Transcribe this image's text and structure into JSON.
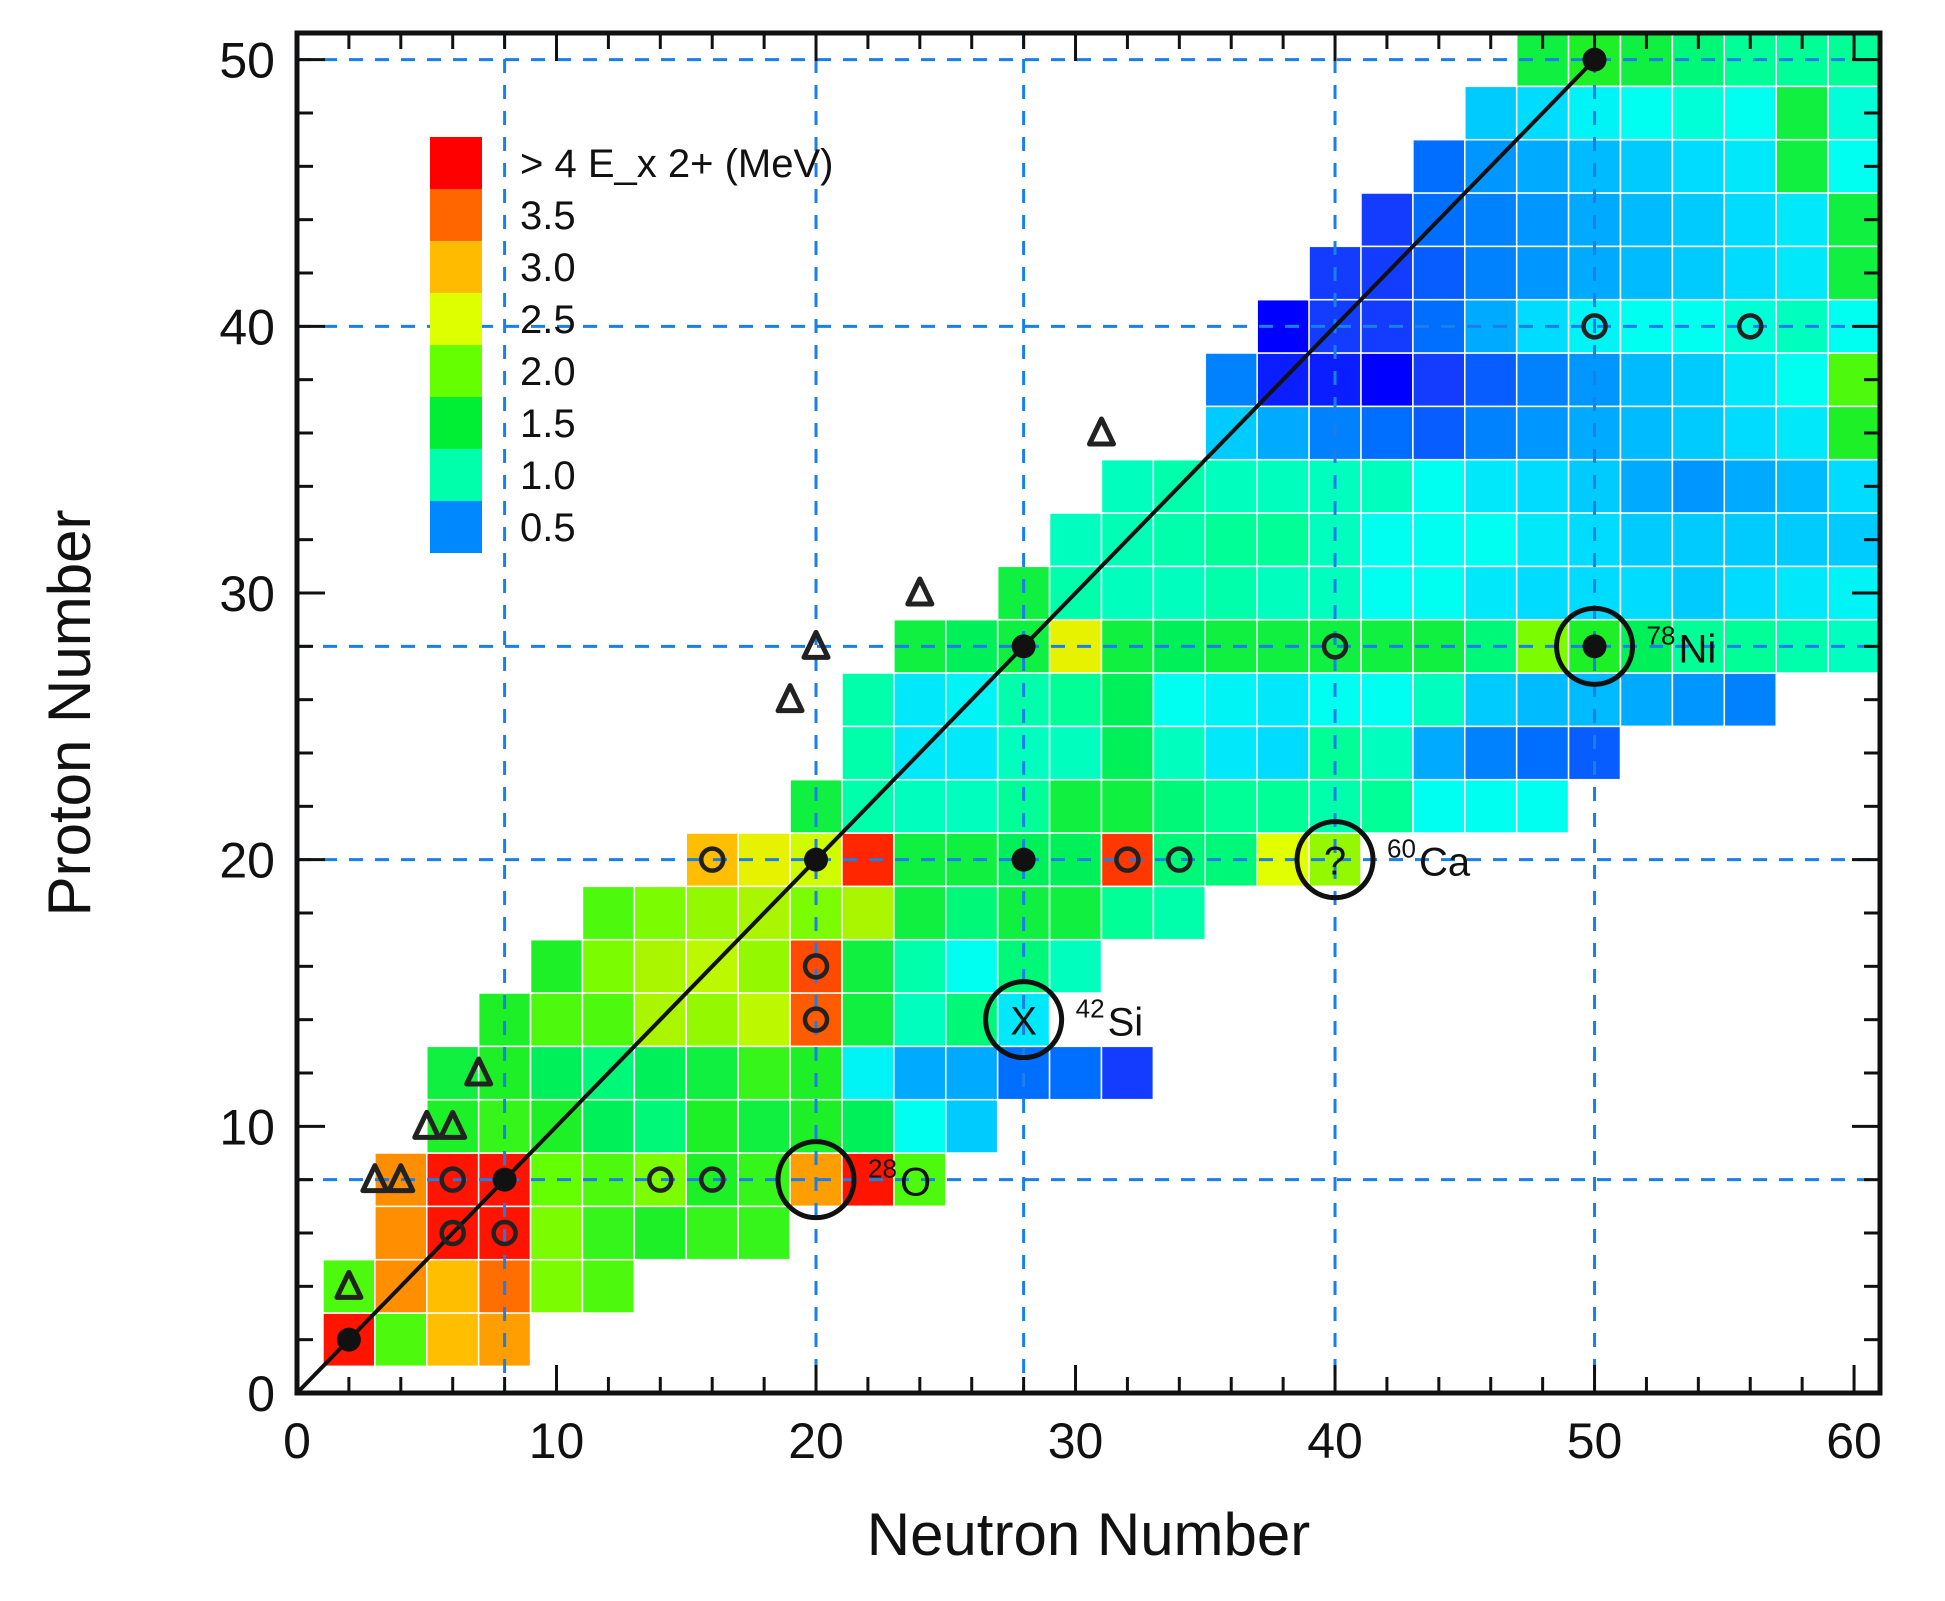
{
  "chart_data": {
    "type": "heatmap",
    "title": "",
    "xlabel": "Neutron Number",
    "ylabel": "Proton Number",
    "xlim": [
      0,
      61
    ],
    "ylim": [
      0,
      51
    ],
    "x_ticks": [
      0,
      10,
      20,
      30,
      40,
      50,
      60
    ],
    "y_ticks": [
      0,
      10,
      20,
      30,
      40,
      50
    ],
    "magic_numbers": {
      "neutron": [
        8,
        20,
        28,
        40,
        50
      ],
      "proton": [
        8,
        20,
        28,
        40,
        50
      ]
    },
    "colorbar": {
      "title": "> 4  E_x 2+ (MeV)",
      "entries": [
        {
          "label": ">4",
          "color": "#ff0000"
        },
        {
          "label": "3.5",
          "color": "#ff6600"
        },
        {
          "label": "3.0",
          "color": "#ffbb00"
        },
        {
          "label": "2.5",
          "color": "#ddff00"
        },
        {
          "label": "2.0",
          "color": "#66ff00"
        },
        {
          "label": "1.5",
          "color": "#00ee33"
        },
        {
          "label": "1.0",
          "color": "#00ffaa"
        },
        {
          "label": "0.5",
          "color": "#0088ff"
        }
      ]
    },
    "cells_note": "Each row: Z, N_start, sequence of E(2+) energy classes (MeV) for consecutive even N",
    "rows": [
      {
        "Z": 2,
        "N0": 2,
        "e": [
          5,
          1.8,
          3.0,
          3.2
        ]
      },
      {
        "Z": 4,
        "N0": 2,
        "e": [
          1.8,
          3.3,
          3.0,
          3.5,
          2.0,
          1.8
        ]
      },
      {
        "Z": 6,
        "N0": 4,
        "e": [
          3.3,
          4.5,
          4.5,
          2.0,
          1.7,
          1.6,
          1.7,
          1.7
        ]
      },
      {
        "Z": 8,
        "N0": 4,
        "e": [
          3.3,
          4.5,
          5,
          1.9,
          1.8,
          2.0,
          1.6,
          1.7,
          3.2,
          4.2,
          1.8
        ]
      },
      {
        "Z": 10,
        "N0": 6,
        "e": [
          1.6,
          1.7,
          1.6,
          1.4,
          1.3,
          1.6,
          1.5,
          1.6,
          1.4,
          0.9,
          0.7
        ]
      },
      {
        "Z": 12,
        "N0": 6,
        "e": [
          1.5,
          1.6,
          1.4,
          1.3,
          1.4,
          1.5,
          1.7,
          1.6,
          0.85,
          0.6,
          0.6,
          0.45,
          0.45,
          0.3
        ]
      },
      {
        "Z": 14,
        "N0": 8,
        "e": [
          1.6,
          1.8,
          1.8,
          2.2,
          2.1,
          2.3,
          3.6,
          1.5,
          1.0,
          1.3,
          0.8
        ]
      },
      {
        "Z": 16,
        "N0": 10,
        "e": [
          1.6,
          2.0,
          2.2,
          2.3,
          2.1,
          3.7,
          1.5,
          1.1,
          0.9,
          1.3,
          1.0
        ]
      },
      {
        "Z": 18,
        "N0": 12,
        "e": [
          1.8,
          2.0,
          2.1,
          2.2,
          2.0,
          2.2,
          1.5,
          1.3,
          1.5,
          1.5,
          1.2,
          1.1
        ]
      },
      {
        "Z": 20,
        "N0": 16,
        "e": [
          3.0,
          2.6,
          2.4,
          3.9,
          1.5,
          1.5,
          1.4,
          1.4,
          3.8,
          1.3,
          1.3,
          2.5,
          2.1
        ]
      },
      {
        "Z": 22,
        "N0": 20,
        "e": [
          1.5,
          1.1,
          1.0,
          1.0,
          1.2,
          1.5,
          1.5,
          1.3,
          1.2,
          1.2,
          1.1,
          1.2,
          0.9,
          0.9,
          0.9
        ]
      },
      {
        "Z": 24,
        "N0": 22,
        "e": [
          1.1,
          0.8,
          0.8,
          1.0,
          1.0,
          1.4,
          1.0,
          0.8,
          0.75,
          1.2,
          1.0,
          0.6,
          0.5,
          0.45,
          0.4
        ]
      },
      {
        "Z": 26,
        "N0": 22,
        "e": [
          1.1,
          0.8,
          0.85,
          1.1,
          1.2,
          1.4,
          0.9,
          0.85,
          0.8,
          0.9,
          0.9,
          1.0,
          0.7,
          0.65,
          0.65,
          0.6,
          0.55,
          0.5
        ]
      },
      {
        "Z": 28,
        "N0": 24,
        "e": [
          1.5,
          1.4,
          1.5,
          2.6,
          1.5,
          1.4,
          1.5,
          1.5,
          1.5,
          1.5,
          1.5,
          1.3,
          2.0,
          1.6,
          1.4,
          1.2,
          1.2,
          1.1,
          1.0,
          1.0,
          1.0,
          1.0,
          1.0,
          1.0,
          1.0,
          1.0,
          2.6
        ]
      },
      {
        "Z": 30,
        "N0": 28,
        "e": [
          1.5,
          1.1,
          1.0,
          1.0,
          1.1,
          1.0,
          1.0,
          0.9,
          0.9,
          0.8,
          0.75,
          0.75,
          0.75,
          0.7,
          0.75,
          0.8,
          0.85,
          0.9,
          0.9,
          0.9,
          0.9,
          1.5
        ]
      },
      {
        "Z": 32,
        "N0": 30,
        "e": [
          1.0,
          1.05,
          1.1,
          1.2,
          1.2,
          1.0,
          0.9,
          0.9,
          0.9,
          0.8,
          0.75,
          0.7,
          0.7,
          0.7,
          0.7,
          0.7,
          0.7,
          0.7,
          0.7,
          1.5,
          0.8,
          0.7,
          0.6
        ]
      },
      {
        "Z": 34,
        "N0": 32,
        "e": [
          1.0,
          1.1,
          1.0,
          1.0,
          1.0,
          1.0,
          0.9,
          0.8,
          0.75,
          0.7,
          0.6,
          0.55,
          0.6,
          0.65,
          0.75,
          0.7,
          0.7,
          0.7,
          1.4,
          0.8,
          0.65
        ]
      },
      {
        "Z": 36,
        "N0": 36,
        "e": [
          0.7,
          0.6,
          0.5,
          0.45,
          0.4,
          0.5,
          0.55,
          0.6,
          0.65,
          0.7,
          0.75,
          0.8,
          1.6,
          0.85,
          0.7,
          0.65,
          0.55,
          0.55,
          0.5,
          0.6,
          0.5,
          0.55,
          0.45,
          0.5,
          0.55,
          0.6,
          0.5
        ]
      },
      {
        "Z": 38,
        "N0": 36,
        "e": [
          0.5,
          0.25,
          0.25,
          0.2,
          0.3,
          0.4,
          0.5,
          0.55,
          0.65,
          0.7,
          0.8,
          0.9,
          1.8,
          1.0,
          0.95,
          0.9,
          0.9,
          0.85,
          0.8,
          0.85,
          0.75,
          0.9,
          0.8,
          0.8,
          0.1
        ]
      },
      {
        "Z": 40,
        "N0": 38,
        "e": [
          0.2,
          0.3,
          0.3,
          0.45,
          0.6,
          0.75,
          0.85,
          0.9,
          0.9,
          0.95,
          1.0,
          0.9,
          1.8,
          0.9,
          0.85,
          0.8,
          0.75,
          0.75,
          0.7,
          1.5,
          1.4,
          0.15
        ]
      },
      {
        "Z": 42,
        "N0": 40,
        "e": [
          0.3,
          0.3,
          0.4,
          0.5,
          0.55,
          0.6,
          0.65,
          0.7,
          0.75,
          0.8,
          1.5,
          0.9,
          0.8,
          0.7,
          0.6,
          0.55,
          0.5,
          0.4,
          0.2
        ]
      },
      {
        "Z": 44,
        "N0": 42,
        "e": [
          0.3,
          0.45,
          0.5,
          0.55,
          0.6,
          0.65,
          0.7,
          0.75,
          0.8,
          1.5,
          0.85,
          0.8,
          0.65,
          0.55,
          0.5,
          0.25
        ]
      },
      {
        "Z": 46,
        "N0": 44,
        "e": [
          0.45,
          0.55,
          0.6,
          0.65,
          0.7,
          0.75,
          0.8,
          1.5,
          0.9,
          0.75,
          0.6,
          0.55,
          0.5,
          0.45
        ]
      },
      {
        "Z": 48,
        "N0": 46,
        "e": [
          0.7,
          0.75,
          0.85,
          0.9,
          0.95,
          0.9,
          1.5,
          0.95,
          0.8,
          0.65,
          0.55,
          0.5,
          0.5
        ]
      },
      {
        "Z": 50,
        "N0": 48,
        "e": [
          1.5,
          1.6,
          1.5,
          1.3,
          1.2,
          1.2,
          1.2,
          1.2,
          1.2,
          1.2,
          1.2
        ]
      }
    ],
    "n_equals_z_line": {
      "from": [
        0,
        0
      ],
      "to": [
        50,
        50
      ]
    },
    "doubly_magic_points": [
      [
        2,
        2
      ],
      [
        8,
        8
      ],
      [
        20,
        20
      ],
      [
        28,
        28
      ],
      [
        50,
        50
      ],
      [
        28,
        20
      ],
      [
        50,
        28
      ]
    ],
    "open_circle_markers": [
      [
        6,
        6
      ],
      [
        8,
        6
      ],
      [
        6,
        8
      ],
      [
        14,
        8
      ],
      [
        16,
        8
      ],
      [
        20,
        14
      ],
      [
        20,
        16
      ],
      [
        16,
        20
      ],
      [
        32,
        20
      ],
      [
        34,
        20
      ],
      [
        40,
        28
      ],
      [
        50,
        40
      ],
      [
        56,
        40
      ]
    ],
    "triangle_markers": [
      [
        2,
        4
      ],
      [
        3,
        8
      ],
      [
        4,
        8
      ],
      [
        5,
        10
      ],
      [
        6,
        10
      ],
      [
        7,
        12
      ],
      [
        19,
        26
      ],
      [
        20,
        28
      ],
      [
        24,
        30
      ],
      [
        31,
        36
      ]
    ],
    "annotations": [
      {
        "n": 20,
        "z": 8,
        "symbol": "",
        "mass": "28",
        "element": "O"
      },
      {
        "n": 28,
        "z": 14,
        "symbol": "X",
        "mass": "42",
        "element": "Si"
      },
      {
        "n": 40,
        "z": 20,
        "symbol": "?",
        "mass": "60",
        "element": "Ca"
      },
      {
        "n": 50,
        "z": 28,
        "symbol": "",
        "mass": "78",
        "element": "Ni"
      }
    ]
  }
}
